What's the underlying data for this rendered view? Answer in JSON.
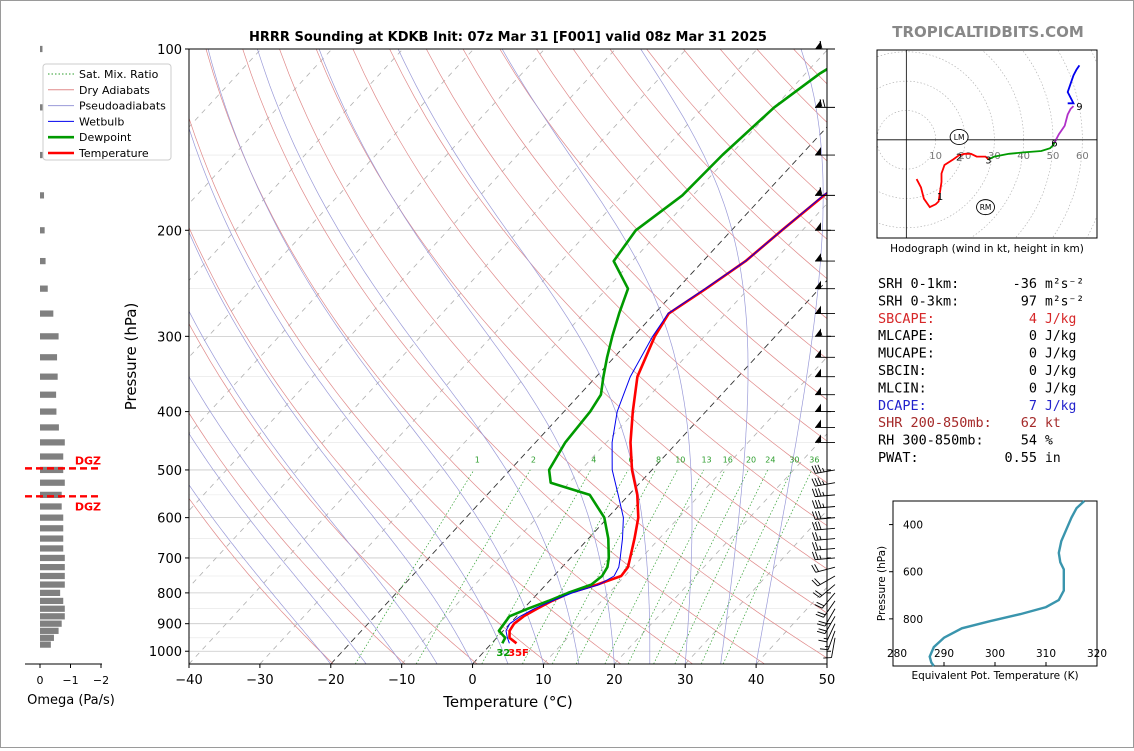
{
  "title": "HRRR Sounding at KDKB Init: 07z Mar 31 [F001] valid 08z Mar 31 2025",
  "watermark": "TROPICALTIDBITS.COM",
  "colors": {
    "temperature": "#ff0000",
    "dewpoint": "#009a00",
    "wetbulb": "#0000ee",
    "dry_adiabat": "#e08a8a",
    "pseudoadiabat": "#9a9ad8",
    "mixing_ratio": "#2e9e2e",
    "theta_e": "#3a95ad",
    "hodo_0_3km": "#ff0000",
    "hodo_3_6km": "#009a00",
    "hodo_6_9km": "#b030c8",
    "hodo_9_12km": "#0000ee",
    "omega_bar": "#808080",
    "dgz": "#ff0000",
    "sbcape_label": "#d62728",
    "dcape_label": "#2222cc",
    "shr_label": "#a52a2a"
  },
  "chart_data": [
    {
      "type": "line",
      "name": "skewt",
      "xlabel": "Temperature (°C)",
      "ylabel": "Pressure (hPa)",
      "xlim": [
        -40,
        50
      ],
      "ylim": [
        1050,
        100
      ],
      "y_scale": "log",
      "x_ticks": [
        "−40",
        "−30",
        "−20",
        "−10",
        "0",
        "10",
        "20",
        "30",
        "40",
        "50"
      ],
      "y_ticks": [
        100,
        200,
        300,
        400,
        500,
        600,
        700,
        800,
        900,
        1000
      ],
      "legend_location": "upper-left",
      "legend": [
        {
          "label": "Sat. Mix. Ratio",
          "style": "dotted",
          "color": "#2e9e2e"
        },
        {
          "label": "Dry Adiabats",
          "style": "solid-thin",
          "color": "#e08a8a"
        },
        {
          "label": "Pseudoadiabats",
          "style": "solid-thin",
          "color": "#9a9ad8"
        },
        {
          "label": "Wetbulb",
          "style": "solid",
          "color": "#0000ee"
        },
        {
          "label": "Dewpoint",
          "style": "thick",
          "color": "#009a00"
        },
        {
          "label": "Temperature",
          "style": "thick",
          "color": "#ff0000"
        }
      ],
      "mixing_ratio_labels": [
        "1",
        "2",
        "4",
        "6",
        "8",
        "10",
        "13",
        "16",
        "20",
        "24",
        "30",
        "36"
      ],
      "surface_temp_label": "35F",
      "surface_dewpoint_label": "32",
      "series": [
        {
          "name": "Temperature",
          "points": [
            [
              970,
              3.5
            ],
            [
              950,
              1.8
            ],
            [
              925,
              0.9
            ],
            [
              900,
              0.6
            ],
            [
              875,
              1.0
            ],
            [
              850,
              1.9
            ],
            [
              825,
              3.0
            ],
            [
              800,
              4.4
            ],
            [
              775,
              7.2
            ],
            [
              750,
              9.5
            ],
            [
              725,
              9.3
            ],
            [
              700,
              8.4
            ],
            [
              650,
              6.5
            ],
            [
              600,
              4.3
            ],
            [
              550,
              1.2
            ],
            [
              500,
              -2.8
            ],
            [
              450,
              -6.6
            ],
            [
              400,
              -10.3
            ],
            [
              350,
              -14.2
            ],
            [
              300,
              -17.0
            ],
            [
              275,
              -18.0
            ],
            [
              250,
              -16.0
            ],
            [
              225,
              -14.0
            ],
            [
              200,
              -12.9
            ],
            [
              175,
              -11.5
            ],
            [
              150,
              -9.0
            ],
            [
              125,
              -7.7
            ],
            [
              100,
              -6.4
            ]
          ]
        },
        {
          "name": "Dewpoint",
          "points": [
            [
              970,
              1.5
            ],
            [
              950,
              1.2
            ],
            [
              925,
              -0.6
            ],
            [
              900,
              -0.8
            ],
            [
              875,
              -1.0
            ],
            [
              850,
              0.6
            ],
            [
              825,
              2.5
            ],
            [
              800,
              4.2
            ],
            [
              775,
              6.4
            ],
            [
              750,
              6.8
            ],
            [
              725,
              6.4
            ],
            [
              700,
              5.4
            ],
            [
              650,
              2.8
            ],
            [
              600,
              -0.5
            ],
            [
              550,
              -5.5
            ],
            [
              525,
              -12.6
            ],
            [
              500,
              -14.5
            ],
            [
              450,
              -15.8
            ],
            [
              400,
              -16.3
            ],
            [
              375,
              -17.0
            ],
            [
              350,
              -19.0
            ],
            [
              325,
              -21.0
            ],
            [
              300,
              -23.0
            ],
            [
              275,
              -25.0
            ],
            [
              250,
              -27.0
            ],
            [
              225,
              -32.6
            ],
            [
              200,
              -33.5
            ],
            [
              175,
              -31.5
            ],
            [
              150,
              -31.1
            ],
            [
              125,
              -30.0
            ],
            [
              110,
              -28.0
            ],
            [
              100,
              -25.5
            ]
          ]
        },
        {
          "name": "Wetbulb",
          "points": [
            [
              970,
              2.5
            ],
            [
              950,
              1.5
            ],
            [
              925,
              0.4
            ],
            [
              900,
              0.0
            ],
            [
              875,
              0.5
            ],
            [
              850,
              1.5
            ],
            [
              825,
              3.0
            ],
            [
              800,
              4.8
            ],
            [
              775,
              7.5
            ],
            [
              750,
              8.5
            ],
            [
              725,
              8.0
            ],
            [
              700,
              7.0
            ],
            [
              650,
              4.8
            ],
            [
              600,
              2.2
            ],
            [
              550,
              -1.5
            ],
            [
              500,
              -5.6
            ],
            [
              450,
              -9.2
            ],
            [
              400,
              -12.5
            ],
            [
              350,
              -15.2
            ],
            [
              300,
              -17.3
            ],
            [
              275,
              -18.1
            ],
            [
              250,
              -16.1
            ],
            [
              225,
              -14.0
            ],
            [
              200,
              -12.9
            ],
            [
              175,
              -11.6
            ],
            [
              150,
              -9.2
            ],
            [
              125,
              -7.8
            ],
            [
              100,
              -6.5
            ]
          ]
        }
      ]
    },
    {
      "type": "bar",
      "name": "omega",
      "xlabel": "Omega (Pa/s)",
      "xlim": [
        0.1,
        -2
      ],
      "x_ticks": [
        "0",
        "−1",
        "−2"
      ],
      "dgz_label": "DGZ",
      "dgz_pressures": [
        497,
        553
      ],
      "levels": [
        100,
        125,
        150,
        175,
        200,
        225,
        250,
        275,
        300,
        325,
        350,
        375,
        400,
        425,
        450,
        475,
        500,
        525,
        550,
        575,
        600,
        625,
        650,
        675,
        700,
        725,
        750,
        775,
        800,
        825,
        850,
        875,
        900,
        925,
        950,
        975
      ],
      "values": [
        -0.08,
        -0.15,
        -0.08,
        -0.13,
        -0.15,
        -0.18,
        -0.25,
        -0.43,
        -0.6,
        -0.55,
        -0.57,
        -0.52,
        -0.53,
        -0.61,
        -0.8,
        -0.75,
        -0.75,
        -0.8,
        -0.7,
        -0.7,
        -0.75,
        -0.75,
        -0.75,
        -0.75,
        -0.8,
        -0.8,
        -0.8,
        -0.8,
        -0.65,
        -0.75,
        -0.8,
        -0.8,
        -0.7,
        -0.6,
        -0.45,
        -0.35
      ]
    },
    {
      "type": "line",
      "name": "hodograph",
      "xlabel": "Hodograph (wind in kt, height in km)",
      "xlim": [
        -10,
        65
      ],
      "ylim": [
        -35,
        32
      ],
      "ring_labels": [
        "10",
        "20",
        "30",
        "40",
        "50",
        "60"
      ],
      "height_labels": [
        {
          "label": "1",
          "u": 11.5,
          "v": -20
        },
        {
          "label": "2",
          "u": 18,
          "v": -6
        },
        {
          "label": "3",
          "u": 28,
          "v": -7
        },
        {
          "label": "6",
          "u": 50.5,
          "v": -1
        },
        {
          "label": "9",
          "u": 59,
          "v": 12
        }
      ],
      "storm_motion": [
        {
          "label": "LM",
          "u": 18,
          "v": 1
        },
        {
          "label": "RM",
          "u": 27,
          "v": -24
        }
      ],
      "series": [
        {
          "name": "0-3km",
          "points": [
            [
              3.5,
              -14
            ],
            [
              5,
              -17
            ],
            [
              6,
              -21
            ],
            [
              8,
              -24
            ],
            [
              10,
              -23
            ],
            [
              11,
              -22
            ],
            [
              12,
              -15
            ],
            [
              12,
              -12
            ],
            [
              13,
              -9
            ],
            [
              16,
              -7
            ],
            [
              18,
              -5.5
            ],
            [
              20,
              -5
            ],
            [
              22,
              -5
            ],
            [
              24,
              -6
            ],
            [
              27,
              -6
            ],
            [
              28,
              -7
            ]
          ]
        },
        {
          "name": "3-6km",
          "points": [
            [
              28,
              -7
            ],
            [
              30,
              -6
            ],
            [
              35,
              -5
            ],
            [
              40,
              -4.5
            ],
            [
              46,
              -4
            ],
            [
              49,
              -3
            ],
            [
              50,
              -2
            ],
            [
              50.5,
              -1
            ]
          ]
        },
        {
          "name": "6-9km",
          "points": [
            [
              50.5,
              -1
            ],
            [
              52,
              2
            ],
            [
              54,
              5
            ],
            [
              55,
              9
            ],
            [
              56,
              11
            ],
            [
              57,
              12
            ]
          ]
        },
        {
          "name": "9-12km",
          "points": [
            [
              55,
              13
            ],
            [
              57,
              13
            ],
            [
              55,
              17
            ],
            [
              56,
              20
            ],
            [
              57,
              23
            ],
            [
              58,
              25
            ],
            [
              59,
              26.5
            ]
          ]
        }
      ]
    },
    {
      "type": "line",
      "name": "theta_e",
      "xlabel": "Equivalent Pot. Temperature (K)",
      "ylabel": "Pressure (hPa)",
      "xlim": [
        280,
        320
      ],
      "ylim": [
        1000,
        300
      ],
      "x_ticks": [
        "280",
        "290",
        "300",
        "310",
        "320"
      ],
      "y_ticks": [
        "400",
        "600",
        "800"
      ],
      "series": [
        {
          "name": "Equivalent Pot. Temperature",
          "points": [
            [
              300,
              317.5
            ],
            [
              330,
              316
            ],
            [
              370,
              315
            ],
            [
              420,
              314
            ],
            [
              470,
              313
            ],
            [
              520,
              312.5
            ],
            [
              560,
              312.8
            ],
            [
              590,
              313.5
            ],
            [
              630,
              313.5
            ],
            [
              680,
              313.5
            ],
            [
              720,
              312.5
            ],
            [
              750,
              310
            ],
            [
              780,
              305
            ],
            [
              810,
              299
            ],
            [
              840,
              293.5
            ],
            [
              880,
              290
            ],
            [
              920,
              288
            ],
            [
              960,
              287.2
            ],
            [
              985,
              287.5
            ],
            [
              1000,
              288
            ]
          ]
        }
      ]
    }
  ],
  "wind_barbs": [
    [
      100,
      270,
      60
    ],
    [
      125,
      270,
      70
    ],
    [
      150,
      270,
      50
    ],
    [
      175,
      270,
      60
    ],
    [
      200,
      270,
      50
    ],
    [
      225,
      270,
      55
    ],
    [
      250,
      270,
      50
    ],
    [
      275,
      270,
      50
    ],
    [
      300,
      270,
      55
    ],
    [
      325,
      270,
      50
    ],
    [
      350,
      270,
      50
    ],
    [
      375,
      270,
      50
    ],
    [
      400,
      270,
      50
    ],
    [
      425,
      270,
      50
    ],
    [
      450,
      270,
      50
    ],
    [
      500,
      260,
      35
    ],
    [
      525,
      260,
      35
    ],
    [
      550,
      265,
      35
    ],
    [
      575,
      265,
      35
    ],
    [
      600,
      265,
      30
    ],
    [
      625,
      265,
      30
    ],
    [
      650,
      265,
      25
    ],
    [
      675,
      265,
      25
    ],
    [
      700,
      265,
      25
    ],
    [
      725,
      255,
      20
    ],
    [
      750,
      240,
      20
    ],
    [
      775,
      230,
      20
    ],
    [
      800,
      220,
      20
    ],
    [
      825,
      215,
      20
    ],
    [
      850,
      210,
      20
    ],
    [
      875,
      210,
      20
    ],
    [
      900,
      205,
      15
    ],
    [
      925,
      200,
      15
    ],
    [
      950,
      190,
      10
    ]
  ],
  "stats": [
    {
      "label": "SRH 0-1km:",
      "value": "-36",
      "unit": "m²s⁻²",
      "color": "#000000"
    },
    {
      "label": "SRH 0-3km:",
      "value": "97",
      "unit": "m²s⁻²",
      "color": "#000000"
    },
    {
      "label": "SBCAPE:",
      "value": "4",
      "unit": "J/kg",
      "color": "#d62728"
    },
    {
      "label": "MLCAPE:",
      "value": "0",
      "unit": "J/kg",
      "color": "#000000"
    },
    {
      "label": "MUCAPE:",
      "value": "0",
      "unit": "J/kg",
      "color": "#000000"
    },
    {
      "label": "SBCIN:",
      "value": "0",
      "unit": "J/kg",
      "color": "#000000"
    },
    {
      "label": "MLCIN:",
      "value": "0",
      "unit": "J/kg",
      "color": "#000000"
    },
    {
      "label": "DCAPE:",
      "value": "7",
      "unit": "J/kg",
      "color": "#2222cc"
    },
    {
      "label": "SHR 200-850mb:",
      "value": "62",
      "unit": "kt",
      "color": "#a52a2a"
    },
    {
      "label": "RH 300-850mb:",
      "value": "54",
      "unit": "%",
      "color": "#000000"
    },
    {
      "label": "PWAT:",
      "value": "0.55",
      "unit": "in",
      "color": "#000000"
    }
  ]
}
